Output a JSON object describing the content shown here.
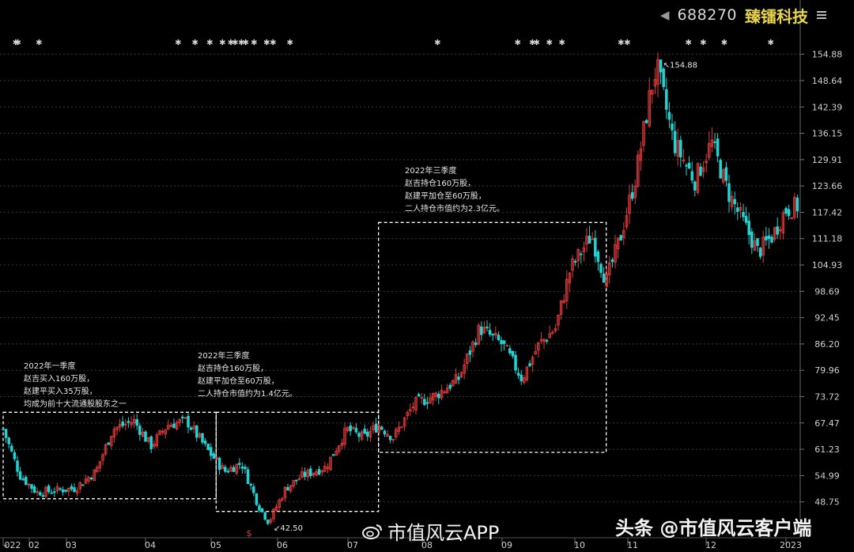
{
  "header": {
    "back_icon": "triangle-left-icon",
    "stock_code": "688270",
    "stock_name": "臻镭科技",
    "menu_icon": "hamburger-icon",
    "code_color": "#d9d9d9",
    "name_color": "#e8d44d"
  },
  "annotations": [
    {
      "id": "q1",
      "lines": [
        "2022年一季度",
        "赵吉买入160万股，",
        "赵建平买入35万股，",
        "均成为前十大流通股股东之一"
      ]
    },
    {
      "id": "q3a",
      "lines": [
        "2022年三季度",
        "赵吉持仓160万股，",
        "赵建平加仓至60万股，",
        "二人持仓市值约为1.4亿元。"
      ]
    },
    {
      "id": "q3b",
      "lines": [
        "2022年三季度",
        "赵吉持仓160万股，",
        "赵建平加仓至60万股，",
        "二人持仓市值约为2.3亿元。"
      ]
    }
  ],
  "watermarks": {
    "left": "市值风云APP",
    "right": "头条 @市值风云客户端",
    "left_icon": "weibo-logo-icon"
  },
  "chart_data": {
    "type": "candlestick",
    "x_tick_labels": [
      "022",
      "02",
      "03",
      "04",
      "05",
      "06",
      "07",
      "08",
      "09",
      "10",
      "11",
      "12",
      "2023"
    ],
    "y_tick_labels": [
      "154.88",
      "148.64",
      "142.39",
      "136.15",
      "129.91",
      "123.66",
      "117.42",
      "111.18",
      "104.93",
      "98.69",
      "92.45",
      "86.20",
      "79.96",
      "73.72",
      "67.47",
      "61.23",
      "54.99",
      "48.75"
    ],
    "ylim": [
      42.5,
      156.5
    ],
    "grid": true,
    "high_label": "154.88",
    "low_label": "42.50",
    "up_color": "#e23a3a",
    "down_color": "#22d3d3",
    "key_closes": [
      [
        "2022-01-04",
        66
      ],
      [
        "2022-01-12",
        55
      ],
      [
        "2022-01-20",
        51
      ],
      [
        "2022-02-07",
        52
      ],
      [
        "2022-02-17",
        56
      ],
      [
        "2022-02-25",
        66
      ],
      [
        "2022-03-07",
        68
      ],
      [
        "2022-03-15",
        62
      ],
      [
        "2022-03-23",
        67
      ],
      [
        "2022-04-01",
        68
      ],
      [
        "2022-04-11",
        61
      ],
      [
        "2022-04-19",
        56
      ],
      [
        "2022-04-27",
        58
      ],
      [
        "2022-05-05",
        48
      ],
      [
        "2022-05-10",
        44
      ],
      [
        "2022-05-18",
        52
      ],
      [
        "2022-05-26",
        55
      ],
      [
        "2022-06-06",
        57
      ],
      [
        "2022-06-16",
        66
      ],
      [
        "2022-06-24",
        64
      ],
      [
        "2022-07-01",
        67
      ],
      [
        "2022-07-08",
        64
      ],
      [
        "2022-07-18",
        72
      ],
      [
        "2022-07-28",
        74
      ],
      [
        "2022-08-08",
        78
      ],
      [
        "2022-08-18",
        90
      ],
      [
        "2022-08-29",
        86
      ],
      [
        "2022-09-07",
        78
      ],
      [
        "2022-09-15",
        86
      ],
      [
        "2022-09-23",
        90
      ],
      [
        "2022-09-30",
        104
      ],
      [
        "2022-10-10",
        112
      ],
      [
        "2022-10-17",
        101
      ],
      [
        "2022-10-24",
        112
      ],
      [
        "2022-10-31",
        126
      ],
      [
        "2022-11-07",
        146
      ],
      [
        "2022-11-10",
        152
      ],
      [
        "2022-11-18",
        134
      ],
      [
        "2022-11-28",
        125
      ],
      [
        "2022-12-06",
        134
      ],
      [
        "2022-12-14",
        122
      ],
      [
        "2022-12-22",
        114
      ],
      [
        "2022-12-28",
        108
      ],
      [
        "2023-01-04",
        112
      ],
      [
        "2023-01-10",
        118
      ],
      [
        "2023-01-16",
        119
      ]
    ],
    "boxes": [
      {
        "from": "2022-01-04",
        "to": "2022-04-15",
        "high": 70,
        "low": 49.5
      },
      {
        "from": "2022-04-15",
        "to": "2022-07-01",
        "high": 70,
        "low": 46.5
      },
      {
        "from": "2022-07-01",
        "to": "2022-10-17",
        "high": 115,
        "low": 60.5
      }
    ],
    "event_markers": [
      "2022-01-10",
      "2022-01-11",
      "2022-01-21",
      "2022-03-28",
      "2022-04-05",
      "2022-04-12",
      "2022-04-18",
      "2022-04-22",
      "2022-04-24",
      "2022-04-27",
      "2022-04-29",
      "2022-05-03",
      "2022-05-09",
      "2022-05-12",
      "2022-05-20",
      "2022-07-29",
      "2022-09-05",
      "2022-09-12",
      "2022-09-14",
      "2022-09-20",
      "2022-09-26",
      "2022-10-24",
      "2022-10-27",
      "2022-11-25",
      "2022-12-02",
      "2022-12-12",
      "2023-01-03"
    ]
  }
}
